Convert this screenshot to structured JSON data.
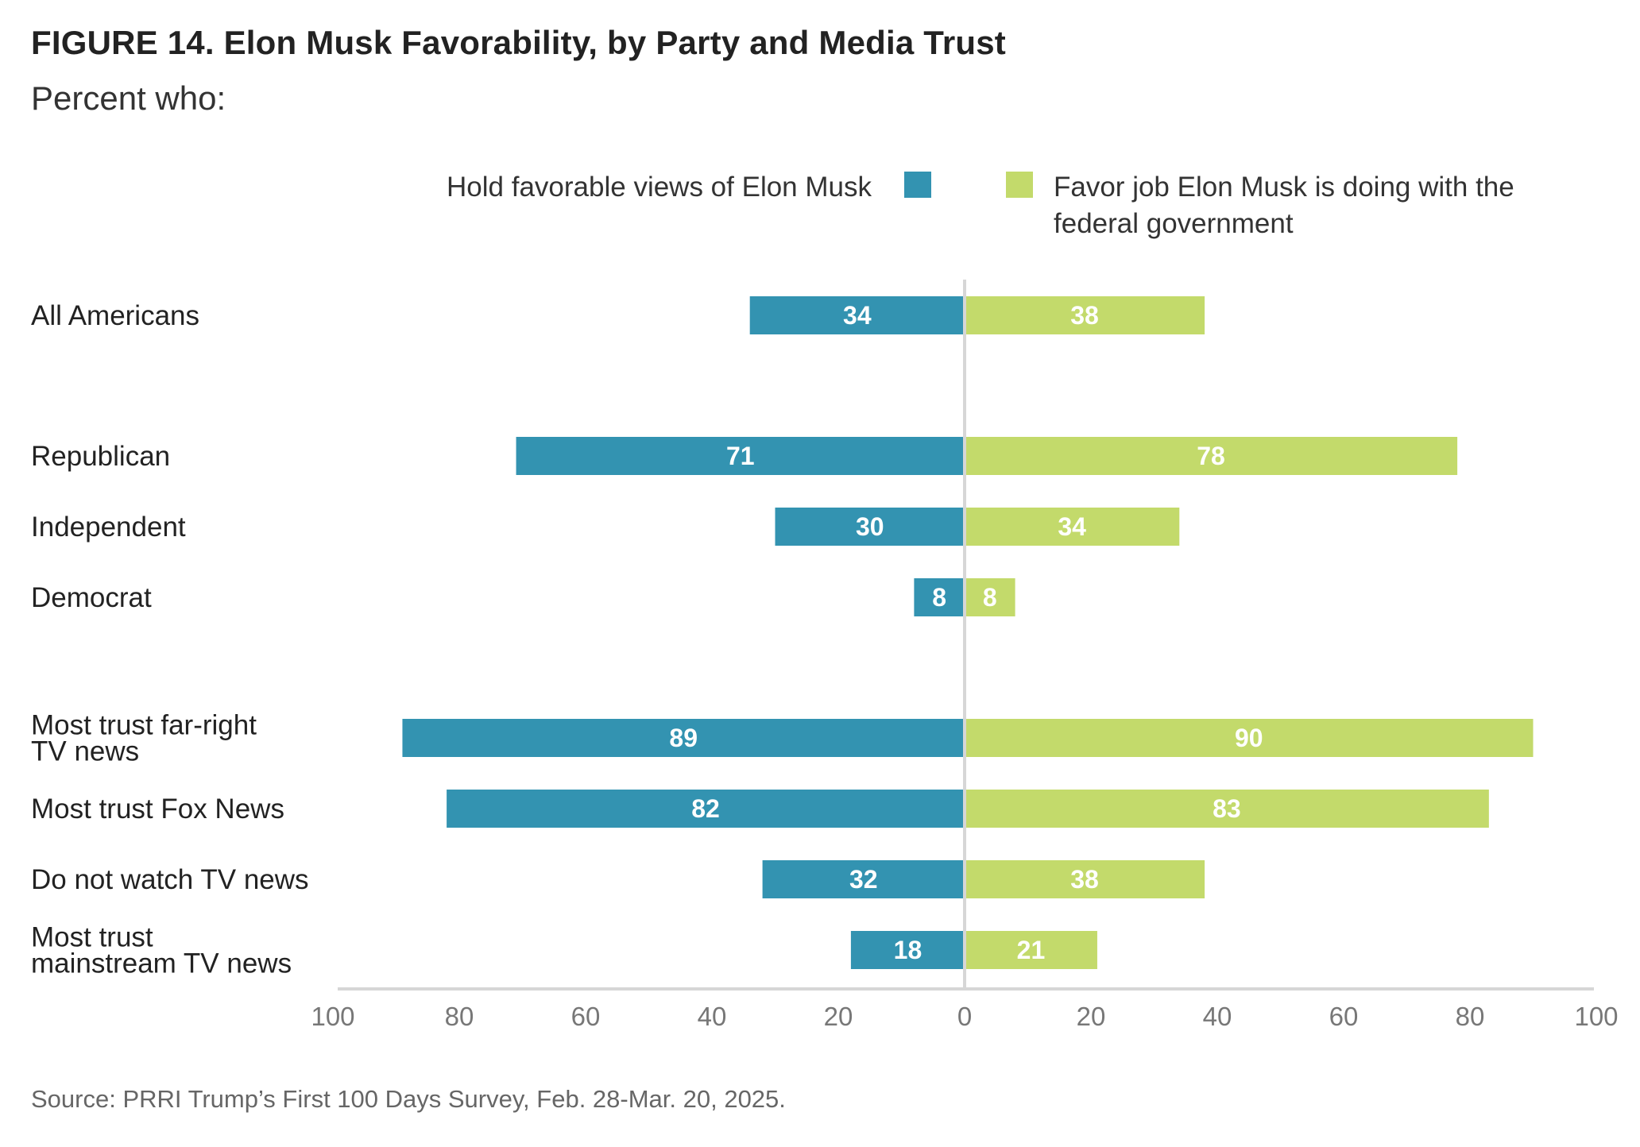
{
  "title": "FIGURE 14.  Elon Musk Favorability, by Party and Media Trust",
  "subtitle": "Percent who:",
  "source": "Source: PRRI Trump’s First 100 Days Survey, Feb. 28-Mar. 20, 2025.",
  "colors": {
    "left": "#3393b1",
    "right": "#c3da6b",
    "axis": "#d6d6d6"
  },
  "chart_data": {
    "type": "bar",
    "orientation": "diverging-horizontal",
    "title": "FIGURE 14.  Elon Musk Favorability, by Party and Media Trust",
    "subtitle": "Percent who:",
    "legend_position": "top",
    "xlim": [
      -100,
      100
    ],
    "ticks": [
      "100",
      "80",
      "60",
      "40",
      "20",
      "0",
      "20",
      "40",
      "60",
      "80",
      "100"
    ],
    "categories": [
      [
        "All Americans"
      ],
      [
        "Republican"
      ],
      [
        "Independent"
      ],
      [
        "Democrat"
      ],
      [
        "Most trust far-right",
        "TV news"
      ],
      [
        "Most trust Fox News"
      ],
      [
        "Do not watch TV news"
      ],
      [
        "Most trust",
        "mainstream TV news"
      ]
    ],
    "group_gap_after": [
      0,
      3
    ],
    "series": [
      {
        "name": [
          "Hold favorable views of Elon Musk"
        ],
        "side": "left",
        "color": "#3393b1",
        "values": [
          34,
          71,
          30,
          8,
          89,
          82,
          32,
          18
        ]
      },
      {
        "name": [
          "Favor job Elon Musk is doing with the",
          "federal government"
        ],
        "side": "right",
        "color": "#c3da6b",
        "values": [
          38,
          78,
          34,
          8,
          90,
          83,
          38,
          21
        ]
      }
    ]
  }
}
